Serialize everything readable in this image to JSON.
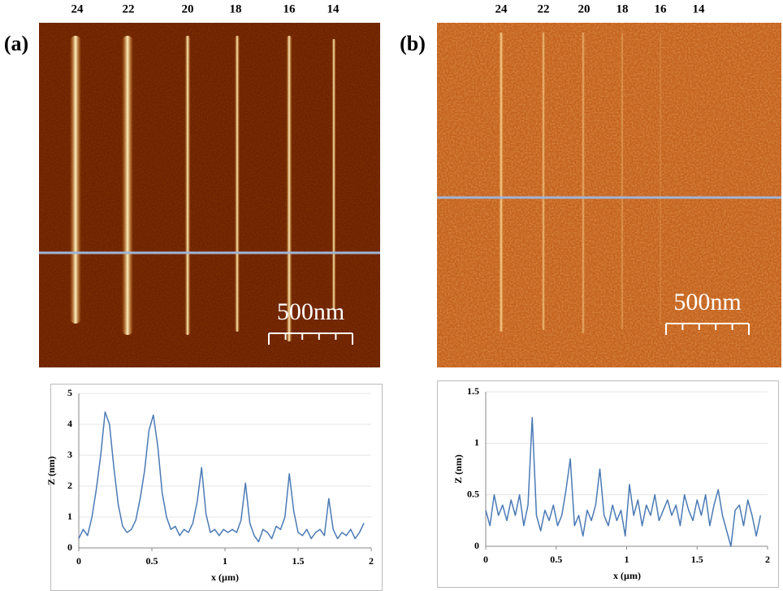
{
  "panels": [
    {
      "label": "(a)",
      "column_labels": [
        24,
        22,
        20,
        18,
        16,
        14
      ],
      "scale_bar": "500nm"
    },
    {
      "label": "(b)",
      "column_labels": [
        24,
        22,
        20,
        18,
        16,
        14
      ],
      "scale_bar": "500nm"
    }
  ],
  "chart_data": [
    {
      "type": "line",
      "xlabel": "x (µm)",
      "ylabel": "Z (nm)",
      "xlim": [
        0,
        2
      ],
      "xticks": [
        0,
        0.5,
        1,
        1.5,
        2
      ],
      "ylim": [
        0,
        5
      ],
      "yticks": [
        0,
        1,
        2,
        3,
        4,
        5
      ],
      "grid": true,
      "x": [
        0,
        0.03,
        0.06,
        0.09,
        0.12,
        0.15,
        0.18,
        0.21,
        0.24,
        0.27,
        0.3,
        0.33,
        0.36,
        0.39,
        0.42,
        0.45,
        0.48,
        0.51,
        0.54,
        0.57,
        0.6,
        0.63,
        0.66,
        0.69,
        0.72,
        0.75,
        0.78,
        0.81,
        0.84,
        0.87,
        0.9,
        0.93,
        0.96,
        0.99,
        1.02,
        1.05,
        1.08,
        1.11,
        1.14,
        1.17,
        1.2,
        1.23,
        1.26,
        1.29,
        1.32,
        1.35,
        1.38,
        1.41,
        1.44,
        1.47,
        1.5,
        1.53,
        1.56,
        1.59,
        1.62,
        1.65,
        1.68,
        1.71,
        1.74,
        1.77,
        1.8,
        1.83,
        1.86,
        1.89,
        1.92,
        1.95
      ],
      "series": [
        {
          "color": "#4a7ab5",
          "values": [
            0.3,
            0.6,
            0.4,
            1.0,
            1.9,
            3.0,
            4.4,
            4.0,
            2.6,
            1.4,
            0.7,
            0.5,
            0.6,
            0.9,
            1.6,
            2.5,
            3.8,
            4.3,
            3.3,
            1.8,
            1.0,
            0.6,
            0.7,
            0.4,
            0.6,
            0.5,
            0.8,
            1.5,
            2.6,
            1.1,
            0.5,
            0.6,
            0.4,
            0.6,
            0.5,
            0.6,
            0.5,
            0.9,
            2.1,
            0.8,
            0.4,
            0.2,
            0.6,
            0.5,
            0.3,
            0.7,
            0.6,
            1.0,
            2.4,
            1.2,
            0.5,
            0.4,
            0.6,
            0.3,
            0.5,
            0.6,
            0.4,
            1.6,
            0.6,
            0.3,
            0.5,
            0.4,
            0.6,
            0.3,
            0.5,
            0.8
          ]
        }
      ]
    },
    {
      "type": "line",
      "xlabel": "x (µm)",
      "ylabel": "Z (nm)",
      "xlim": [
        0,
        2
      ],
      "xticks": [
        0,
        0.5,
        1,
        1.5,
        2
      ],
      "ylim": [
        0,
        1.5
      ],
      "yticks": [
        0,
        0.5,
        1,
        1.5
      ],
      "grid": true,
      "x": [
        0,
        0.03,
        0.06,
        0.09,
        0.12,
        0.15,
        0.18,
        0.21,
        0.24,
        0.27,
        0.3,
        0.33,
        0.36,
        0.39,
        0.42,
        0.45,
        0.48,
        0.51,
        0.54,
        0.57,
        0.6,
        0.63,
        0.66,
        0.69,
        0.72,
        0.75,
        0.78,
        0.81,
        0.84,
        0.87,
        0.9,
        0.93,
        0.96,
        0.99,
        1.02,
        1.05,
        1.08,
        1.11,
        1.14,
        1.17,
        1.2,
        1.23,
        1.26,
        1.29,
        1.32,
        1.35,
        1.38,
        1.41,
        1.44,
        1.47,
        1.5,
        1.53,
        1.56,
        1.59,
        1.62,
        1.65,
        1.68,
        1.71,
        1.74,
        1.77,
        1.8,
        1.83,
        1.86,
        1.89,
        1.92,
        1.95
      ],
      "series": [
        {
          "color": "#4a7ab5",
          "values": [
            0.35,
            0.2,
            0.5,
            0.3,
            0.4,
            0.25,
            0.45,
            0.3,
            0.5,
            0.2,
            0.4,
            1.25,
            0.3,
            0.15,
            0.35,
            0.25,
            0.4,
            0.2,
            0.3,
            0.55,
            0.85,
            0.2,
            0.3,
            0.1,
            0.35,
            0.25,
            0.4,
            0.75,
            0.3,
            0.2,
            0.4,
            0.25,
            0.35,
            0.1,
            0.6,
            0.3,
            0.45,
            0.2,
            0.4,
            0.3,
            0.5,
            0.25,
            0.35,
            0.45,
            0.3,
            0.4,
            0.2,
            0.5,
            0.35,
            0.25,
            0.45,
            0.3,
            0.5,
            0.2,
            0.4,
            0.55,
            0.3,
            0.15,
            0.0,
            0.35,
            0.4,
            0.2,
            0.45,
            0.3,
            0.1,
            0.3
          ]
        }
      ]
    }
  ]
}
